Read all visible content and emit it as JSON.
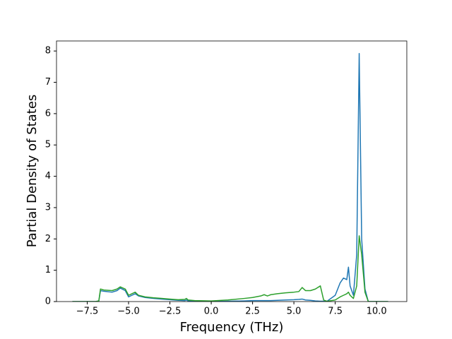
{
  "chart_data": {
    "type": "line",
    "xlabel": "Frequency (THz)",
    "ylabel": "Partial Density of States",
    "x": [
      -8.4,
      -7.0,
      -6.8,
      -6.7,
      -6.5,
      -6.0,
      -5.7,
      -5.5,
      -5.2,
      -5.0,
      -4.8,
      -4.6,
      -4.4,
      -4.0,
      -3.5,
      -3.0,
      -2.5,
      -2.0,
      -1.6,
      -1.5,
      -1.4,
      -1.0,
      0,
      1.0,
      2.0,
      2.5,
      3.0,
      3.2,
      3.4,
      3.6,
      4.0,
      4.5,
      5.0,
      5.3,
      5.5,
      5.7,
      6.0,
      6.3,
      6.6,
      6.8,
      7.0,
      7.5,
      7.8,
      8.0,
      8.2,
      8.3,
      8.4,
      8.6,
      8.8,
      8.95,
      9.1,
      9.3,
      9.5,
      10.0,
      10.7
    ],
    "series": [
      {
        "color": "#1f77b4",
        "values": [
          0,
          0,
          0.02,
          0.35,
          0.33,
          0.3,
          0.35,
          0.43,
          0.35,
          0.15,
          0.2,
          0.25,
          0.18,
          0.13,
          0.1,
          0.08,
          0.06,
          0.04,
          0.03,
          0.05,
          0.02,
          0.01,
          0,
          0.01,
          0.02,
          0.03,
          0.03,
          0.03,
          0.03,
          0.03,
          0.04,
          0.05,
          0.06,
          0.07,
          0.08,
          0.05,
          0.04,
          0.02,
          0.01,
          0.01,
          0.01,
          0.2,
          0.6,
          0.75,
          0.7,
          1.1,
          0.5,
          0.2,
          1.5,
          7.92,
          2.0,
          0.4,
          0,
          0,
          0
        ]
      },
      {
        "color": "#2ca02c",
        "values": [
          0,
          0,
          0.02,
          0.4,
          0.37,
          0.35,
          0.4,
          0.47,
          0.4,
          0.2,
          0.25,
          0.3,
          0.2,
          0.15,
          0.12,
          0.1,
          0.08,
          0.06,
          0.07,
          0.1,
          0.05,
          0.03,
          0.02,
          0.05,
          0.1,
          0.13,
          0.18,
          0.22,
          0.18,
          0.22,
          0.25,
          0.28,
          0.3,
          0.32,
          0.45,
          0.35,
          0.35,
          0.4,
          0.5,
          0.05,
          0.01,
          0.05,
          0.15,
          0.2,
          0.25,
          0.3,
          0.2,
          0.1,
          0.5,
          2.1,
          1.5,
          0.3,
          0,
          0,
          0
        ]
      }
    ],
    "xlim": [
      -9.36,
      11.83
    ],
    "ylim": [
      0,
      8.32
    ],
    "xticks": [
      {
        "value": -7.5,
        "label": "−7.5"
      },
      {
        "value": -5.0,
        "label": "−5.0"
      },
      {
        "value": -2.5,
        "label": "−2.5"
      },
      {
        "value": 0,
        "label": "0.0"
      },
      {
        "value": 2.5,
        "label": "2.5"
      },
      {
        "value": 5.0,
        "label": "5.0"
      },
      {
        "value": 7.5,
        "label": "7.5"
      },
      {
        "value": 10.0,
        "label": "10.0"
      }
    ],
    "yticks": [
      0,
      1,
      2,
      3,
      4,
      5,
      6,
      7,
      8
    ]
  }
}
